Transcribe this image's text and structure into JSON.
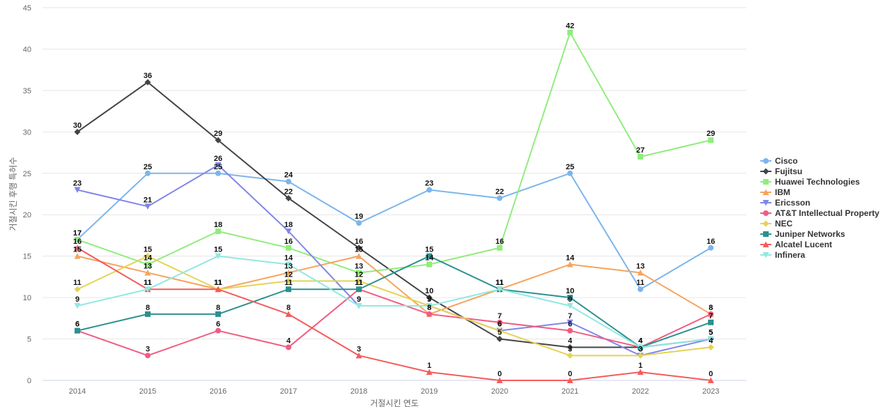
{
  "chart_data": {
    "type": "line",
    "xlabel": "거절시킨 연도",
    "ylabel": "거절시킨 후행 특허수",
    "ylim": [
      0,
      45
    ],
    "yticks": [
      0,
      5,
      10,
      15,
      20,
      25,
      30,
      35,
      40,
      45
    ],
    "grid": true,
    "legend_position": "right",
    "categories": [
      "2014",
      "2015",
      "2016",
      "2017",
      "2018",
      "2019",
      "2020",
      "2021",
      "2022",
      "2023"
    ],
    "series": [
      {
        "name": "Cisco",
        "color": "#7cb5ec",
        "marker": "circle",
        "values": [
          17,
          25,
          25,
          24,
          19,
          23,
          22,
          25,
          11,
          16
        ]
      },
      {
        "name": "Fujitsu",
        "color": "#434348",
        "marker": "diamond",
        "values": [
          30,
          36,
          29,
          22,
          16,
          10,
          5,
          4,
          4,
          5
        ]
      },
      {
        "name": "Huawei Technologies",
        "color": "#90ed7d",
        "marker": "square",
        "values": [
          17,
          14,
          18,
          16,
          13,
          14,
          16,
          42,
          27,
          29
        ]
      },
      {
        "name": "IBM",
        "color": "#f7a35c",
        "marker": "triangle",
        "values": [
          15,
          13,
          11,
          13,
          15,
          8,
          11,
          14,
          13,
          8
        ]
      },
      {
        "name": "Ericsson",
        "color": "#8085e9",
        "marker": "triangle-down",
        "values": [
          23,
          21,
          26,
          18,
          9,
          9,
          6,
          7,
          3,
          5
        ]
      },
      {
        "name": "AT&T Intellectual Property",
        "color": "#f15c80",
        "marker": "circle",
        "values": [
          6,
          3,
          6,
          4,
          11,
          8,
          7,
          6,
          4,
          8
        ]
      },
      {
        "name": "NEC",
        "color": "#e4d354",
        "marker": "diamond",
        "values": [
          11,
          15,
          11,
          12,
          12,
          9,
          6,
          3,
          3,
          4
        ]
      },
      {
        "name": "Juniper Networks",
        "color": "#2b908f",
        "marker": "square",
        "values": [
          6,
          8,
          8,
          11,
          11,
          15,
          11,
          10,
          4,
          7
        ]
      },
      {
        "name": "Alcatel Lucent",
        "color": "#f45b5b",
        "marker": "triangle",
        "values": [
          16,
          11,
          11,
          8,
          3,
          1,
          0,
          0,
          1,
          0
        ]
      },
      {
        "name": "Infinera",
        "color": "#91e8e1",
        "marker": "triangle-down",
        "values": [
          9,
          11,
          15,
          14,
          9,
          9,
          11,
          9,
          4,
          5
        ]
      }
    ]
  }
}
